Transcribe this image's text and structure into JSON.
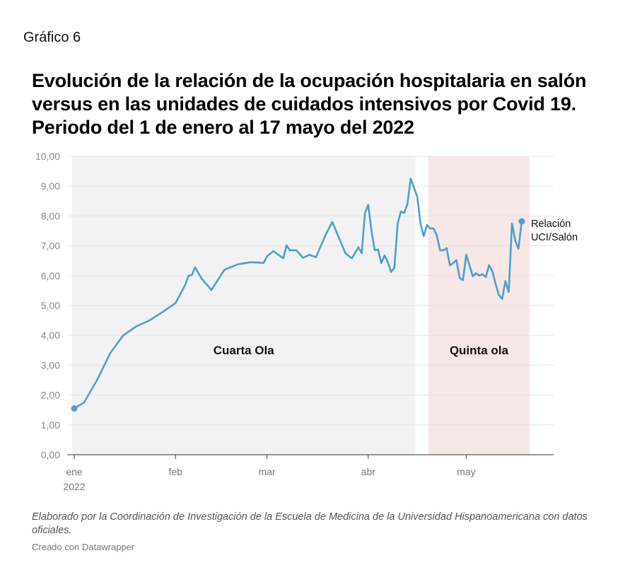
{
  "header": {
    "kicker": "Gráfico 6",
    "title": "Evolución de la relación de la ocupación hospitalaria en salón versus en las unidades de cuidados intensivos por Covid 19. Periodo del 1 de enero al 17 mayo del 2022"
  },
  "footer": {
    "notes": "Elaborado por la Coordinación de Investigación de la Escuela de Medicina de la Universidad Hispanoamericana con datos oficiales.",
    "credit": "Creado con Datawrapper"
  },
  "chart_data": {
    "type": "line",
    "title": "",
    "xlabel": "",
    "ylabel": "",
    "ylim": [
      0,
      10
    ],
    "yticks": [
      "0,00",
      "1,00",
      "2,00",
      "3,00",
      "4,00",
      "5,00",
      "6,00",
      "7,00",
      "8,00",
      "9,00",
      "10,00"
    ],
    "xlim": [
      "2022-01-01",
      "2022-05-22"
    ],
    "xticks": [
      {
        "date": "2022-01-01",
        "label": "ene",
        "sublabel": "2022"
      },
      {
        "date": "2022-02-01",
        "label": "feb",
        "sublabel": ""
      },
      {
        "date": "2022-03-01",
        "label": "mar",
        "sublabel": ""
      },
      {
        "date": "2022-04-01",
        "label": "abr",
        "sublabel": ""
      },
      {
        "date": "2022-05-01",
        "label": "may",
        "sublabel": ""
      }
    ],
    "grid": true,
    "line_color": "#4d9fcc",
    "regions": [
      {
        "label": "Cuarta Ola",
        "start": "2022-01-01",
        "end": "2022-04-15",
        "color": "#f2f2f2"
      },
      {
        "label": "Quinta ola",
        "start": "2022-04-20",
        "end": "2022-05-20",
        "color": "#f7e7e7"
      }
    ],
    "series": [
      {
        "name": "Relación UCI/Salón",
        "points": [
          [
            "2022-01-01",
            1.55
          ],
          [
            "2022-01-04",
            1.75
          ],
          [
            "2022-01-08",
            2.5
          ],
          [
            "2022-01-12",
            3.4
          ],
          [
            "2022-01-16",
            4.0
          ],
          [
            "2022-01-20",
            4.3
          ],
          [
            "2022-01-24",
            4.5
          ],
          [
            "2022-01-28",
            4.78
          ],
          [
            "2022-02-01",
            5.08
          ],
          [
            "2022-02-04",
            5.7
          ],
          [
            "2022-02-05",
            6.0
          ],
          [
            "2022-02-06",
            6.02
          ],
          [
            "2022-02-07",
            6.28
          ],
          [
            "2022-02-09",
            5.9
          ],
          [
            "2022-02-12",
            5.52
          ],
          [
            "2022-02-16",
            6.2
          ],
          [
            "2022-02-20",
            6.38
          ],
          [
            "2022-02-24",
            6.45
          ],
          [
            "2022-02-28",
            6.43
          ],
          [
            "2022-03-01",
            6.65
          ],
          [
            "2022-03-03",
            6.82
          ],
          [
            "2022-03-06",
            6.58
          ],
          [
            "2022-03-07",
            7.02
          ],
          [
            "2022-03-08",
            6.85
          ],
          [
            "2022-03-10",
            6.85
          ],
          [
            "2022-03-12",
            6.6
          ],
          [
            "2022-03-14",
            6.7
          ],
          [
            "2022-03-16",
            6.62
          ],
          [
            "2022-03-19",
            7.38
          ],
          [
            "2022-03-21",
            7.8
          ],
          [
            "2022-03-25",
            6.75
          ],
          [
            "2022-03-27",
            6.58
          ],
          [
            "2022-03-29",
            6.95
          ],
          [
            "2022-03-30",
            6.75
          ],
          [
            "2022-03-31",
            8.1
          ],
          [
            "2022-04-01",
            8.38
          ],
          [
            "2022-04-02",
            7.5
          ],
          [
            "2022-04-03",
            6.85
          ],
          [
            "2022-04-04",
            6.88
          ],
          [
            "2022-04-05",
            6.42
          ],
          [
            "2022-04-06",
            6.68
          ],
          [
            "2022-04-07",
            6.45
          ],
          [
            "2022-04-08",
            6.12
          ],
          [
            "2022-04-09",
            6.27
          ],
          [
            "2022-04-10",
            7.75
          ],
          [
            "2022-04-11",
            8.15
          ],
          [
            "2022-04-12",
            8.1
          ],
          [
            "2022-04-13",
            8.4
          ],
          [
            "2022-04-14",
            9.25
          ],
          [
            "2022-04-15",
            8.95
          ],
          [
            "2022-04-16",
            8.65
          ],
          [
            "2022-04-17",
            7.75
          ],
          [
            "2022-04-18",
            7.32
          ],
          [
            "2022-04-19",
            7.7
          ],
          [
            "2022-04-20",
            7.58
          ],
          [
            "2022-04-21",
            7.58
          ],
          [
            "2022-04-22",
            7.35
          ],
          [
            "2022-04-23",
            6.85
          ],
          [
            "2022-04-24",
            6.85
          ],
          [
            "2022-04-25",
            6.92
          ],
          [
            "2022-04-26",
            6.35
          ],
          [
            "2022-04-27",
            6.42
          ],
          [
            "2022-04-28",
            6.52
          ],
          [
            "2022-04-29",
            5.92
          ],
          [
            "2022-04-30",
            5.85
          ],
          [
            "2022-05-01",
            6.7
          ],
          [
            "2022-05-02",
            6.35
          ],
          [
            "2022-05-03",
            5.98
          ],
          [
            "2022-05-04",
            6.08
          ],
          [
            "2022-05-05",
            6.0
          ],
          [
            "2022-05-06",
            6.05
          ],
          [
            "2022-05-07",
            5.95
          ],
          [
            "2022-05-08",
            6.35
          ],
          [
            "2022-05-09",
            6.15
          ],
          [
            "2022-05-10",
            5.72
          ],
          [
            "2022-05-11",
            5.35
          ],
          [
            "2022-05-12",
            5.22
          ],
          [
            "2022-05-13",
            5.82
          ],
          [
            "2022-05-14",
            5.45
          ],
          [
            "2022-05-15",
            7.75
          ],
          [
            "2022-05-16",
            7.18
          ],
          [
            "2022-05-17",
            6.9
          ],
          [
            "2022-05-18",
            7.82
          ]
        ],
        "label_lines": [
          "Relación",
          "UCI/Salón"
        ]
      }
    ]
  }
}
